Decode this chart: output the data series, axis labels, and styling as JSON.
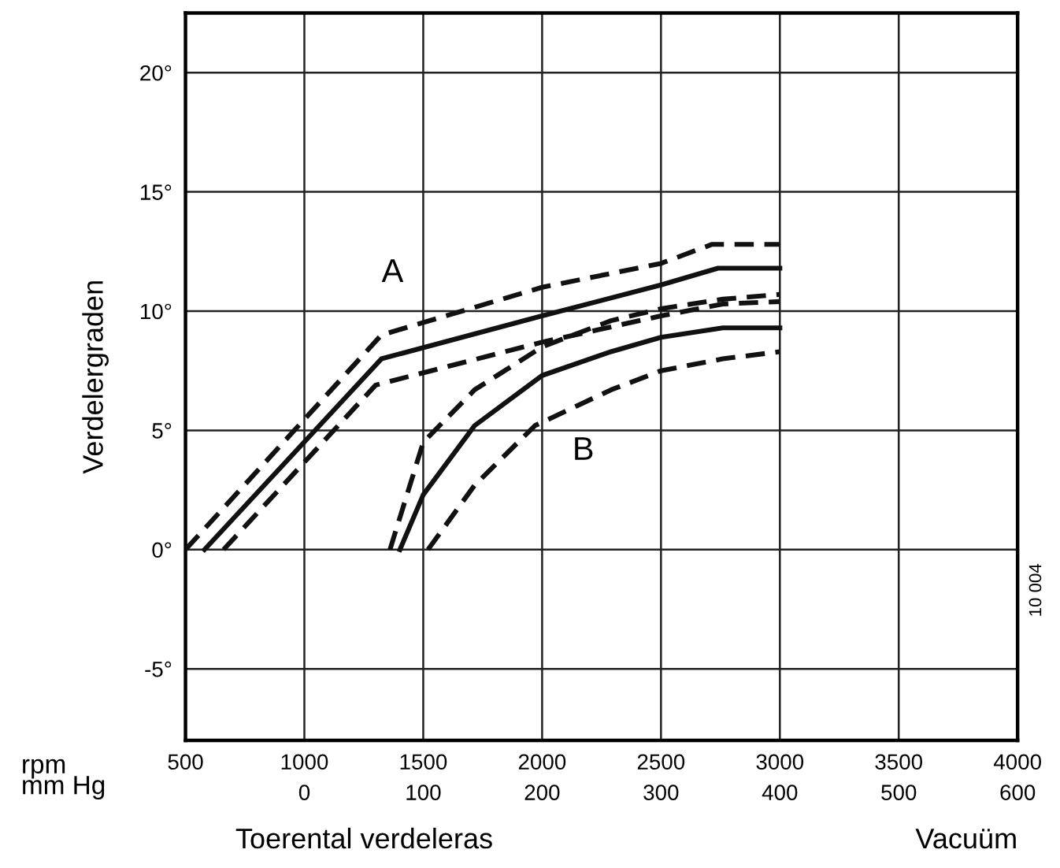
{
  "chart_data": {
    "type": "line",
    "ylabel": "Verdelergraden",
    "xlabel": "Toerental verdeleras",
    "x2label": "Vacuüm",
    "xlim": [
      500,
      4000
    ],
    "xticks": [
      500,
      1000,
      1500,
      2000,
      2500,
      3000,
      3500,
      4000
    ],
    "x2lim": [
      -100,
      600
    ],
    "x2ticks": [
      0,
      100,
      200,
      300,
      400,
      500,
      600
    ],
    "ylim": [
      -8,
      22.5
    ],
    "yticks": [
      {
        "value": -5,
        "label": "-5°"
      },
      {
        "value": 0,
        "label": "0°"
      },
      {
        "value": 5,
        "label": "5°"
      },
      {
        "value": 10,
        "label": "10°"
      },
      {
        "value": 15,
        "label": "15°"
      },
      {
        "value": 20,
        "label": "20°"
      }
    ],
    "grid": true,
    "marker": "none",
    "series": [
      {
        "color": "#111111",
        "line_style": "dashed",
        "x": [
          500,
          1324,
          2000,
          2500,
          2715,
          3000
        ],
        "values": [
          0,
          9.0,
          11.0,
          12.0,
          12.8,
          12.8
        ]
      },
      {
        "color": "#111111",
        "line_style": "solid",
        "x": [
          580,
          1324,
          2000,
          2500,
          2740,
          3000
        ],
        "values": [
          0,
          8.0,
          9.8,
          11.1,
          11.8,
          11.8
        ]
      },
      {
        "color": "#111111",
        "line_style": "dashed",
        "x": [
          660,
          1300,
          2000,
          2500,
          2760,
          3000
        ],
        "values": [
          0,
          6.9,
          8.7,
          9.8,
          10.3,
          10.4
        ]
      },
      {
        "color": "#111111",
        "line_style": "dashed",
        "x": [
          1360,
          1500,
          1716,
          2000,
          2290,
          2500,
          2760,
          3000
        ],
        "values": [
          0,
          4.5,
          6.7,
          8.5,
          9.6,
          10.1,
          10.5,
          10.7
        ]
      },
      {
        "color": "#111111",
        "line_style": "solid",
        "x": [
          1402,
          1500,
          1716,
          2000,
          2290,
          2500,
          2760,
          3000
        ],
        "values": [
          0,
          2.3,
          5.2,
          7.3,
          8.3,
          8.9,
          9.3,
          9.3
        ]
      },
      {
        "color": "#111111",
        "line_style": "dashed",
        "x": [
          1520,
          1716,
          1970,
          2290,
          2500,
          2760,
          3000
        ],
        "values": [
          0,
          2.7,
          5.2,
          6.7,
          7.5,
          8.0,
          8.3
        ]
      }
    ],
    "annotations": [
      "rpm",
      "mm Hg",
      "10 004",
      "A",
      "B"
    ]
  }
}
